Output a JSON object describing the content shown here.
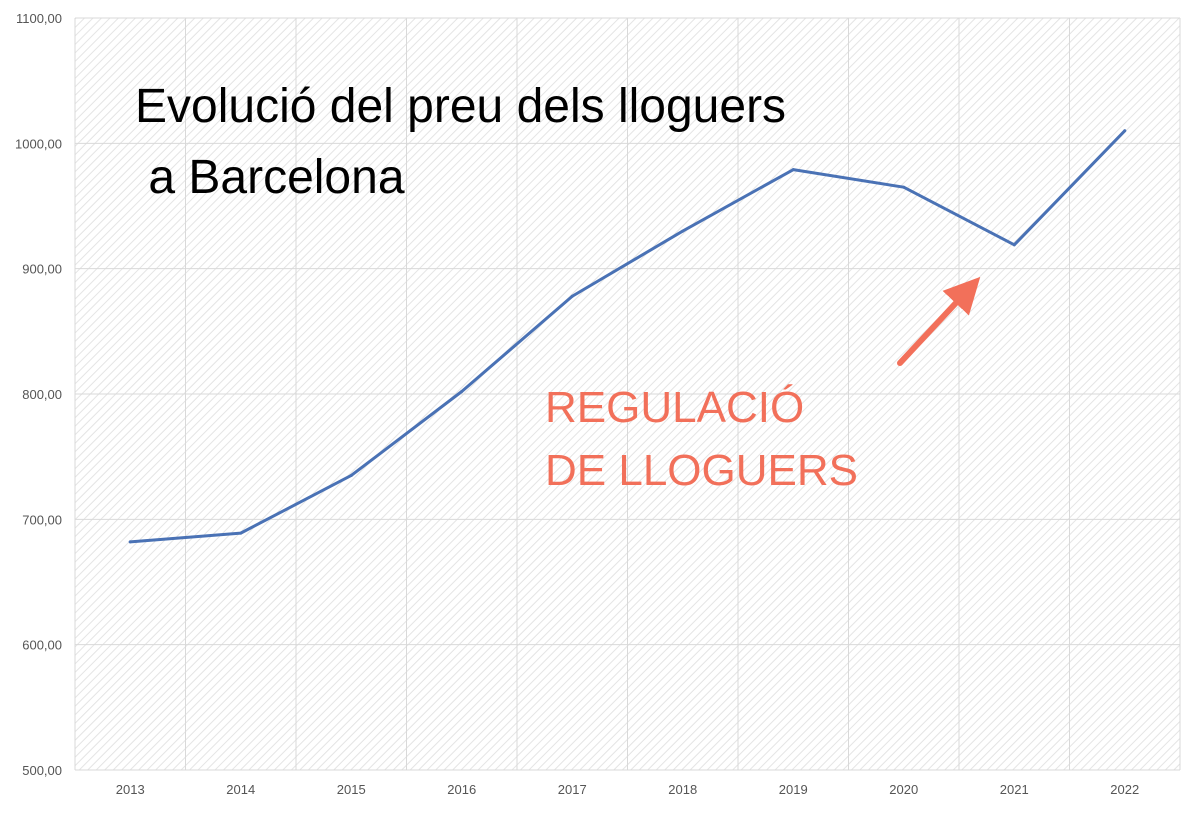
{
  "chart_data": {
    "type": "line",
    "title_lines": [
      "Evolució del preu dels lloguers",
      " a Barcelona"
    ],
    "categories": [
      "2013",
      "2014",
      "2015",
      "2016",
      "2017",
      "2018",
      "2019",
      "2020",
      "2021",
      "2022"
    ],
    "series": [
      {
        "values": [
          682,
          689,
          735,
          802,
          878,
          930,
          979,
          965,
          919,
          1010
        ]
      }
    ],
    "ylim": [
      500,
      1100
    ],
    "y_ticks": [
      500,
      600,
      700,
      800,
      900,
      1000,
      1100
    ],
    "y_tick_labels": [
      "500,00",
      "600,00",
      "700,00",
      "800,00",
      "900,00",
      "1000,00",
      "1100,00"
    ],
    "grid": true,
    "annotation": {
      "lines": [
        "REGULACIÓ",
        "DE LLOGUERS"
      ],
      "points_to": "2021"
    },
    "colors": {
      "line": "#4a72b5",
      "annotation": "#f2705a",
      "title": "#000000",
      "grid": "#d9d9d9",
      "hatch": "#e2e2e2",
      "tick_text": "#555555"
    }
  }
}
